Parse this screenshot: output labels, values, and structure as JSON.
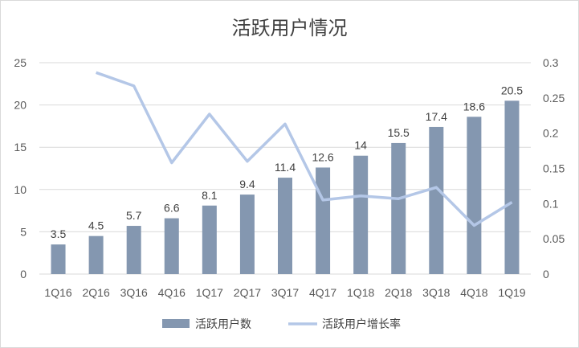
{
  "chart_data": {
    "type": "bar",
    "title": "活跃用户情况",
    "categories": [
      "1Q16",
      "2Q16",
      "3Q16",
      "4Q16",
      "1Q17",
      "2Q17",
      "3Q17",
      "4Q17",
      "1Q18",
      "2Q18",
      "3Q18",
      "4Q18",
      "1Q19"
    ],
    "series": [
      {
        "name": "活跃用户数",
        "type": "bar",
        "axis": "left",
        "color": "#8497b0",
        "values": [
          3.5,
          4.5,
          5.7,
          6.6,
          8.1,
          9.4,
          11.4,
          12.6,
          14,
          15.5,
          17.4,
          18.6,
          20.5
        ],
        "labels": [
          "3.5",
          "4.5",
          "5.7",
          "6.6",
          "8.1",
          "9.4",
          "11.4",
          "12.6",
          "14",
          "15.5",
          "17.4",
          "18.6",
          "20.5"
        ]
      },
      {
        "name": "活跃用户增长率",
        "type": "line",
        "axis": "right",
        "color": "#b4c7e7",
        "values": [
          null,
          0.286,
          0.267,
          0.158,
          0.227,
          0.16,
          0.213,
          0.105,
          0.111,
          0.107,
          0.123,
          0.069,
          0.102
        ]
      }
    ],
    "y_left": {
      "min": 0,
      "max": 25,
      "ticks": [
        "0",
        "5",
        "10",
        "15",
        "20",
        "25"
      ]
    },
    "y_right": {
      "min": 0,
      "max": 0.3,
      "ticks": [
        "0",
        "0.05",
        "0.1",
        "0.15",
        "0.2",
        "0.25",
        "0.3"
      ]
    },
    "grid": true,
    "legend_position": "bottom"
  }
}
